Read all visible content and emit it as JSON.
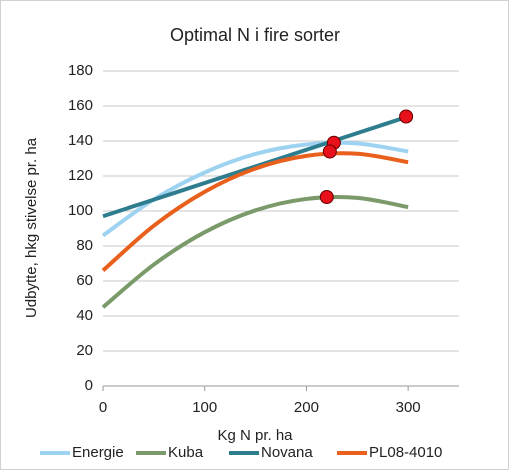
{
  "chart_data": {
    "type": "line",
    "title": "Optimal N i fire sorter",
    "xlabel": "Kg N pr. ha",
    "ylabel": "Udbytte, hkg stivelse pr. ha",
    "x": [
      0,
      50,
      100,
      150,
      200,
      250,
      300
    ],
    "series": [
      {
        "name": "Energie",
        "color": "#9dd3f0",
        "values": [
          86,
          106.6,
          122,
          132.6,
          138,
          138.6,
          134
        ]
      },
      {
        "name": "Kuba",
        "color": "#7a9a6a",
        "values": [
          45,
          69.4,
          87.9,
          100.4,
          106.9,
          107.5,
          102.2
        ]
      },
      {
        "name": "Novana",
        "color": "#2e7d8f",
        "values": [
          97,
          106.5,
          116,
          125.5,
          135,
          144.5,
          154
        ]
      },
      {
        "name": "PL08-4010",
        "color": "#e8601c",
        "values": [
          66,
          91.6,
          111,
          124.3,
          131.5,
          132.7,
          127.9
        ]
      }
    ],
    "points": {
      "color": "#e8101a",
      "x": [
        227,
        223,
        220,
        298
      ],
      "y": [
        139,
        134,
        108,
        154
      ]
    },
    "xlim": [
      0,
      350
    ],
    "xticks": [
      0,
      100,
      200,
      300
    ],
    "ylim": [
      0,
      180
    ],
    "yticks": [
      0,
      20,
      40,
      60,
      80,
      100,
      120,
      140,
      160,
      180
    ],
    "grid": true,
    "legend": "bottom"
  }
}
